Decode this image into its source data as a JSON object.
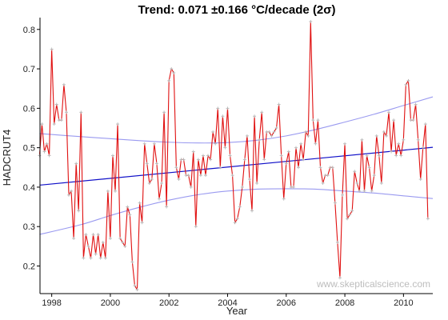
{
  "chart_data": {
    "type": "line",
    "title": "Trend: 0.071 ±0.166 °C/decade (2σ)",
    "xlabel": "Year",
    "ylabel": "HADCRUT4",
    "watermark": "www.skepticalscience.com",
    "xlim": [
      1997.6,
      2011.0
    ],
    "ylim": [
      0.13,
      0.83
    ],
    "x_ticks": [
      1998,
      2000,
      2002,
      2004,
      2006,
      2008,
      2010
    ],
    "y_ticks": [
      0.2,
      0.3,
      0.4,
      0.5,
      0.6,
      0.7,
      0.8
    ],
    "grid": false,
    "legend": "none",
    "colors": {
      "series": "#e01010",
      "marker": "#b8b8b8",
      "trend": "#1010c8",
      "confidence": "#9a9af0",
      "axis": "#000000"
    },
    "series": [
      {
        "x_start": 1997.583,
        "x_step": 0.08333,
        "values": [
          0.48,
          0.56,
          0.49,
          0.51,
          0.48,
          0.75,
          0.56,
          0.61,
          0.57,
          0.57,
          0.66,
          0.59,
          0.38,
          0.39,
          0.27,
          0.46,
          0.34,
          0.59,
          0.22,
          0.28,
          0.25,
          0.22,
          0.28,
          0.23,
          0.28,
          0.22,
          0.26,
          0.22,
          0.39,
          0.27,
          0.48,
          0.39,
          0.56,
          0.27,
          0.26,
          0.25,
          0.35,
          0.33,
          0.21,
          0.15,
          0.14,
          0.36,
          0.31,
          0.51,
          0.46,
          0.41,
          0.42,
          0.51,
          0.46,
          0.37,
          0.41,
          0.59,
          0.35,
          0.67,
          0.7,
          0.69,
          0.45,
          0.42,
          0.47,
          0.47,
          0.43,
          0.43,
          0.4,
          0.49,
          0.3,
          0.47,
          0.43,
          0.48,
          0.43,
          0.48,
          0.47,
          0.54,
          0.51,
          0.6,
          0.45,
          0.58,
          0.5,
          0.6,
          0.48,
          0.43,
          0.31,
          0.32,
          0.35,
          0.4,
          0.47,
          0.53,
          0.42,
          0.34,
          0.58,
          0.41,
          0.52,
          0.59,
          0.47,
          0.54,
          0.54,
          0.53,
          0.54,
          0.55,
          0.61,
          0.48,
          0.37,
          0.46,
          0.49,
          0.4,
          0.4,
          0.5,
          0.45,
          0.51,
          0.47,
          0.54,
          0.53,
          0.82,
          0.57,
          0.51,
          0.57,
          0.45,
          0.41,
          0.43,
          0.43,
          0.45,
          0.45,
          0.36,
          0.26,
          0.17,
          0.38,
          0.51,
          0.32,
          0.33,
          0.34,
          0.44,
          0.41,
          0.39,
          0.52,
          0.39,
          0.48,
          0.45,
          0.39,
          0.43,
          0.53,
          0.48,
          0.41,
          0.54,
          0.53,
          0.59,
          0.49,
          0.57,
          0.48,
          0.51,
          0.48,
          0.52,
          0.66,
          0.67,
          0.57,
          0.57,
          0.61,
          0.52,
          0.42,
          0.5,
          0.56,
          0.32
        ]
      },
      {
        "role": "trend",
        "x": [
          1997.583,
          2011.0
        ],
        "values": [
          0.405,
          0.501
        ]
      },
      {
        "role": "upper_bound",
        "x": [
          1997.583,
          1999.0,
          2000.0,
          2001.0,
          2002.0,
          2003.0,
          2004.0,
          2005.0,
          2006.0,
          2007.0,
          2008.0,
          2009.0,
          2010.0,
          2011.0
        ],
        "values": [
          0.536,
          0.528,
          0.523,
          0.518,
          0.514,
          0.512,
          0.513,
          0.519,
          0.53,
          0.546,
          0.565,
          0.585,
          0.607,
          0.629
        ]
      },
      {
        "role": "lower_bound",
        "x": [
          1997.583,
          1999.0,
          2000.0,
          2001.0,
          2002.0,
          2003.0,
          2004.0,
          2005.0,
          2006.0,
          2007.0,
          2008.0,
          2009.0,
          2010.0,
          2011.0
        ],
        "values": [
          0.28,
          0.305,
          0.328,
          0.349,
          0.367,
          0.381,
          0.39,
          0.395,
          0.396,
          0.395,
          0.39,
          0.385,
          0.378,
          0.371
        ]
      }
    ]
  }
}
